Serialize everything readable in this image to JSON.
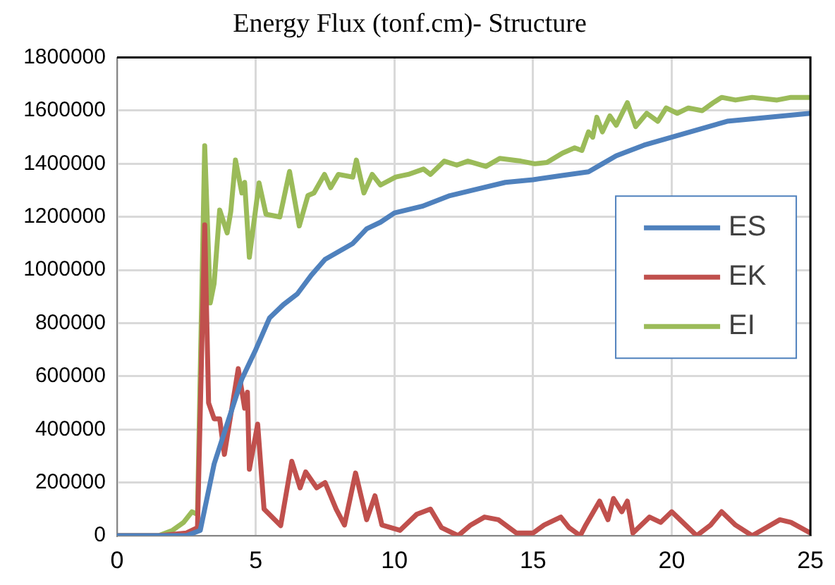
{
  "chart_data": {
    "type": "line",
    "title": "Energy Flux (tonf.cm)- Structure",
    "xlim": [
      0,
      25
    ],
    "xticks": [
      0,
      5,
      10,
      15,
      20,
      25
    ],
    "ylim": [
      0,
      1800000
    ],
    "yticks": [
      0,
      200000,
      400000,
      600000,
      800000,
      1000000,
      1200000,
      1400000,
      1600000,
      1800000
    ],
    "grid": true,
    "legend": "right",
    "marker": "none",
    "line_style": "solid",
    "series": [
      {
        "name": "ES",
        "color": "#4f81bd",
        "x": [
          0,
          1,
          2,
          2.5,
          3,
          3.5,
          4,
          4.5,
          5,
          5.5,
          6,
          6.5,
          7,
          7.5,
          8,
          8.5,
          9,
          9.5,
          10,
          11,
          12,
          13,
          14,
          15,
          16,
          17,
          17.5,
          18,
          19,
          20,
          21,
          22,
          23,
          24,
          25
        ],
        "values": [
          0,
          0,
          0,
          0,
          20000,
          270000,
          430000,
          590000,
          700000,
          820000,
          870000,
          910000,
          980000,
          1040000,
          1070000,
          1100000,
          1155000,
          1180000,
          1215000,
          1240000,
          1280000,
          1305000,
          1330000,
          1340000,
          1355000,
          1370000,
          1400000,
          1430000,
          1470000,
          1500000,
          1530000,
          1560000,
          1570000,
          1580000,
          1590000
        ]
      },
      {
        "name": "EK",
        "color": "#c0504d",
        "x": [
          0,
          1.5,
          2,
          2.5,
          2.9,
          3.16,
          3.3,
          3.5,
          3.7,
          3.87,
          4.37,
          4.6,
          4.7,
          4.77,
          5.07,
          5.3,
          5.9,
          6.3,
          6.6,
          6.8,
          7.2,
          7.5,
          7.9,
          8.2,
          8.6,
          9.0,
          9.3,
          9.55,
          10.2,
          10.8,
          11.3,
          11.7,
          12.3,
          12.75,
          13.25,
          13.75,
          14.4,
          15.0,
          15.4,
          16.0,
          16.3,
          16.7,
          16.9,
          17.4,
          17.7,
          17.9,
          18.2,
          18.4,
          18.6,
          19.2,
          19.6,
          20.0,
          20.3,
          20.9,
          21.4,
          21.8,
          22.3,
          22.9,
          23.4,
          23.9,
          24.3,
          25
        ],
        "values": [
          0,
          0,
          5000,
          10000,
          30000,
          1170000,
          500000,
          440000,
          440000,
          306000,
          629000,
          480000,
          540000,
          250000,
          420000,
          100000,
          38000,
          280000,
          180000,
          240000,
          180000,
          200000,
          100000,
          40000,
          236000,
          60000,
          150000,
          40000,
          20000,
          80000,
          100000,
          30000,
          0,
          40000,
          70000,
          60000,
          10000,
          10000,
          40000,
          70000,
          30000,
          0,
          40000,
          130000,
          60000,
          140000,
          90000,
          130000,
          10000,
          70000,
          50000,
          90000,
          60000,
          0,
          40000,
          90000,
          40000,
          0,
          30000,
          60000,
          50000,
          10000
        ]
      },
      {
        "name": "EI",
        "color": "#9bbb59",
        "x": [
          0,
          1.5,
          2,
          2.4,
          2.7,
          2.9,
          3.16,
          3.36,
          3.5,
          3.7,
          3.97,
          4.1,
          4.27,
          4.5,
          4.6,
          4.77,
          5.12,
          5.37,
          5.87,
          6.22,
          6.57,
          6.88,
          7.1,
          7.48,
          7.7,
          7.98,
          8.5,
          8.63,
          8.9,
          9.2,
          9.5,
          10.05,
          10.5,
          11.05,
          11.3,
          11.8,
          12.25,
          12.65,
          13.3,
          13.8,
          14.56,
          15.06,
          15.5,
          16.06,
          16.5,
          16.76,
          17.0,
          17.15,
          17.3,
          17.5,
          17.77,
          18.0,
          18.4,
          18.7,
          19.1,
          19.5,
          19.8,
          20.2,
          20.6,
          21.1,
          21.5,
          21.8,
          22.3,
          22.9,
          23.8,
          24.3,
          25
        ],
        "values": [
          0,
          0,
          20000,
          50000,
          90000,
          80000,
          1468000,
          876000,
          950000,
          1226000,
          1140000,
          1220000,
          1414000,
          1290000,
          1330000,
          1048000,
          1328000,
          1210000,
          1200000,
          1371000,
          1166000,
          1280000,
          1290000,
          1360000,
          1310000,
          1360000,
          1350000,
          1414000,
          1290000,
          1360000,
          1320000,
          1350000,
          1360000,
          1380000,
          1360000,
          1410000,
          1395000,
          1410000,
          1390000,
          1420000,
          1410000,
          1400000,
          1405000,
          1440000,
          1460000,
          1450000,
          1520000,
          1500000,
          1575000,
          1520000,
          1580000,
          1545000,
          1630000,
          1540000,
          1590000,
          1560000,
          1610000,
          1590000,
          1610000,
          1600000,
          1630000,
          1650000,
          1640000,
          1650000,
          1640000,
          1650000,
          1650000
        ]
      }
    ]
  }
}
